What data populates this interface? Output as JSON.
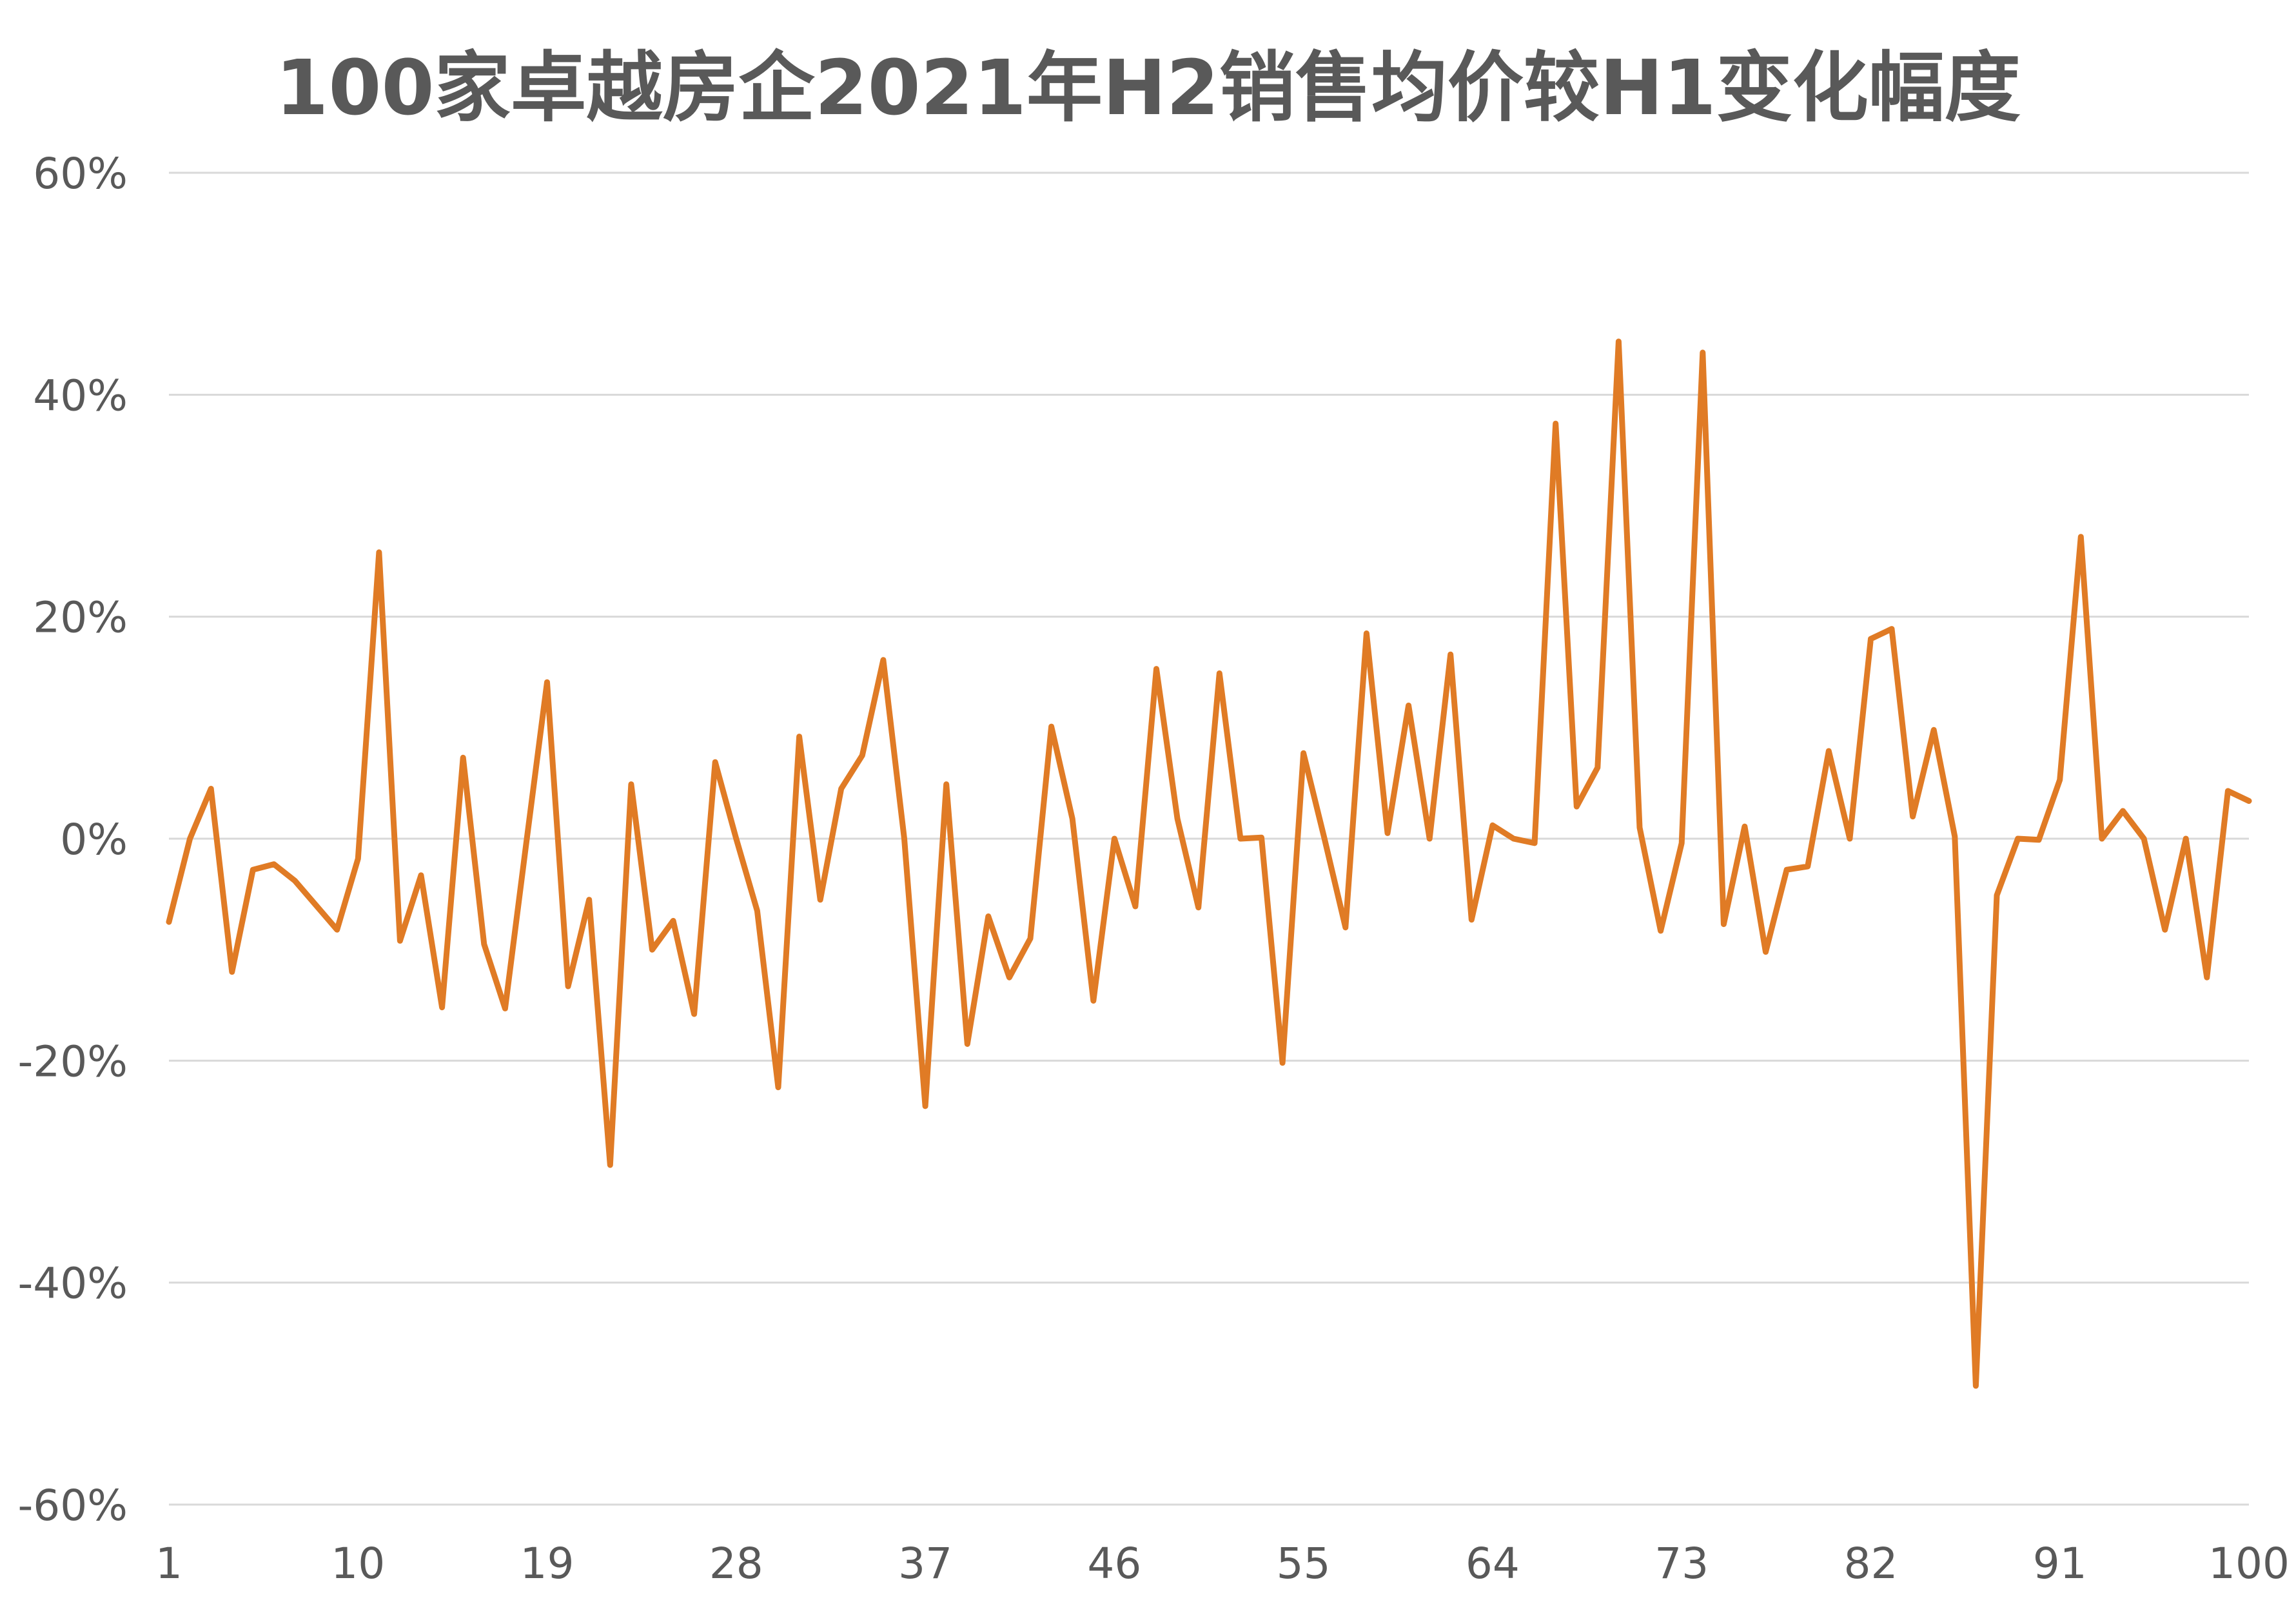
{
  "chart_data": {
    "type": "line",
    "title": "100家卓越房企2021年H2销售均价较H1变化幅度",
    "xlabel": "",
    "ylabel": "",
    "ylim": [
      -0.6,
      0.6
    ],
    "yticks": [
      0.6,
      0.4,
      0.2,
      0,
      -0.2,
      -0.4,
      -0.6
    ],
    "ytick_labels": [
      "60%",
      "40%",
      "20%",
      "0%",
      "-20%",
      "-40%",
      "-60%"
    ],
    "xticks": [
      1,
      10,
      19,
      28,
      37,
      46,
      55,
      64,
      73,
      82,
      91,
      100
    ],
    "grid": true,
    "legend": "none",
    "series": [
      {
        "color": "#E07B25",
        "x": [
          1,
          2,
          3,
          4,
          5,
          6,
          7,
          8,
          9,
          10,
          11,
          12,
          13,
          14,
          15,
          16,
          17,
          18,
          19,
          20,
          21,
          22,
          23,
          24,
          25,
          26,
          27,
          28,
          29,
          30,
          31,
          32,
          33,
          34,
          35,
          36,
          37,
          38,
          39,
          40,
          41,
          42,
          43,
          44,
          45,
          46,
          47,
          48,
          49,
          50,
          51,
          52,
          53,
          54,
          55,
          56,
          57,
          58,
          59,
          60,
          61,
          62,
          63,
          64,
          65,
          66,
          67,
          68,
          69,
          70,
          71,
          72,
          73,
          74,
          75,
          76,
          77,
          78,
          79,
          80,
          81,
          82,
          83,
          84,
          85,
          86,
          87,
          88,
          89,
          90,
          91,
          92,
          93,
          94,
          95,
          96,
          97,
          98,
          99,
          100
        ],
        "values": [
          -0.075,
          0,
          0.045,
          -0.12,
          -0.028,
          -0.023,
          -0.038,
          -0.06,
          -0.082,
          -0.018,
          0.258,
          -0.092,
          -0.033,
          -0.152,
          0.073,
          -0.095,
          -0.153,
          -0.005,
          0.141,
          -0.133,
          -0.055,
          -0.294,
          0.049,
          -0.1,
          -0.074,
          -0.158,
          0.069,
          0,
          -0.065,
          -0.224,
          0.092,
          -0.055,
          0.045,
          0.075,
          0.161,
          0,
          -0.241,
          0.049,
          -0.185,
          -0.07,
          -0.125,
          -0.09,
          0.101,
          0.018,
          -0.146,
          0,
          -0.061,
          0.153,
          0.018,
          -0.062,
          0.149,
          0,
          0.001,
          -0.202,
          0.077,
          0,
          -0.08,
          0.185,
          0.005,
          0.12,
          0,
          0.166,
          -0.073,
          0.012,
          0,
          -0.004,
          0.374,
          0.029,
          0.064,
          0.448,
          0.01,
          -0.083,
          -0.004,
          0.438,
          -0.077,
          0.011,
          -0.102,
          -0.028,
          -0.025,
          0.079,
          0,
          0.18,
          0.189,
          0.02,
          0.098,
          0.002,
          -0.493,
          -0.051,
          0,
          -0.001,
          0.053,
          0.272,
          0,
          0.025,
          0,
          -0.082,
          0,
          -0.125,
          0.043,
          0.034
        ]
      }
    ]
  }
}
